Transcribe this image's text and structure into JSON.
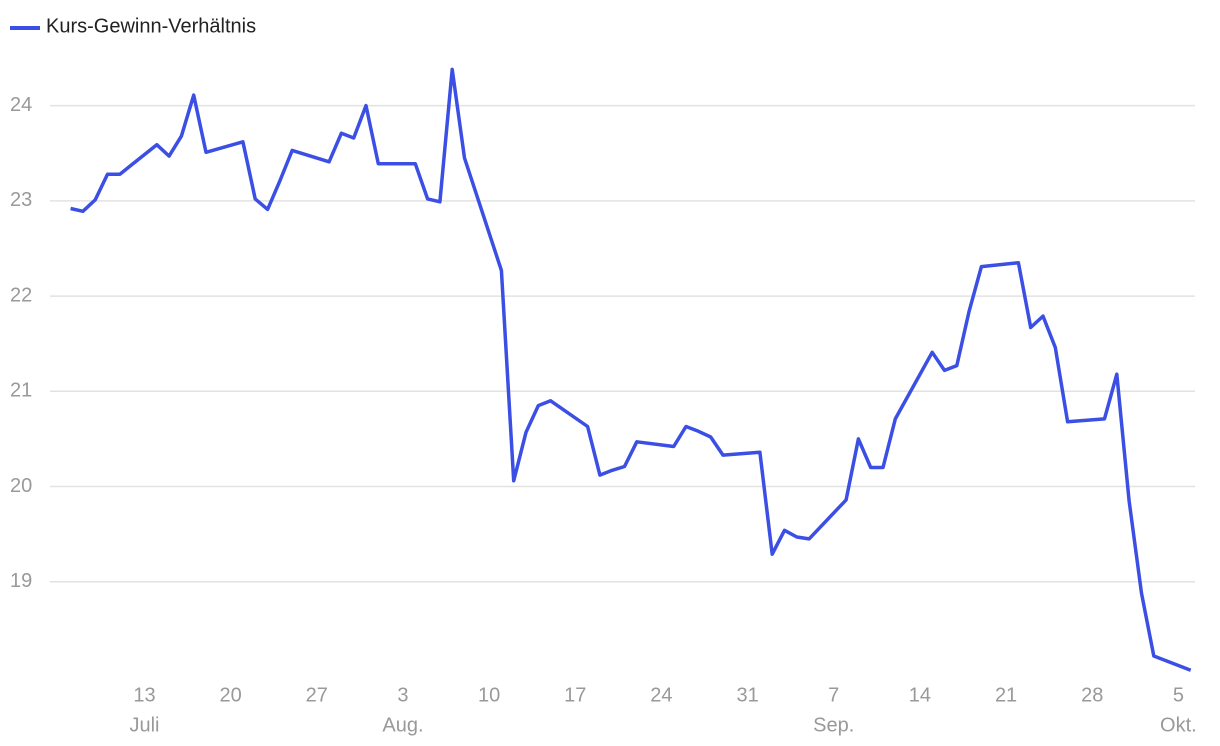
{
  "chart_data": {
    "type": "line",
    "x": [
      "07-07",
      "07-08",
      "07-09",
      "07-10",
      "07-11",
      "07-14",
      "07-15",
      "07-16",
      "07-17",
      "07-18",
      "07-21",
      "07-22",
      "07-23",
      "07-24",
      "07-25",
      "07-28",
      "07-29",
      "07-30",
      "07-31",
      "08-01",
      "08-04",
      "08-05",
      "08-06",
      "08-07",
      "08-08",
      "08-11",
      "08-12",
      "08-13",
      "08-14",
      "08-15",
      "08-18",
      "08-19",
      "08-20",
      "08-21",
      "08-22",
      "08-25",
      "08-26",
      "08-27",
      "08-28",
      "08-29",
      "09-01",
      "09-02",
      "09-03",
      "09-04",
      "09-05",
      "09-08",
      "09-09",
      "09-10",
      "09-11",
      "09-12",
      "09-15",
      "09-16",
      "09-17",
      "09-18",
      "09-19",
      "09-22",
      "09-23",
      "09-24",
      "09-25",
      "09-26",
      "09-29",
      "09-30",
      "10-01",
      "10-02",
      "10-03",
      "10-06"
    ],
    "series": [
      {
        "name": "Kurs-Gewinn-Verhältnis",
        "color": "#3b4fe4",
        "values": [
          22.92,
          22.89,
          23.01,
          23.28,
          23.28,
          23.59,
          23.47,
          23.68,
          24.11,
          23.51,
          23.62,
          23.02,
          22.91,
          23.21,
          23.53,
          23.41,
          23.71,
          23.66,
          24.0,
          23.39,
          23.39,
          23.02,
          22.99,
          24.38,
          23.45,
          22.27,
          20.06,
          20.57,
          20.85,
          20.9,
          20.63,
          20.12,
          20.17,
          20.21,
          20.47,
          20.42,
          20.63,
          20.58,
          20.52,
          20.33,
          20.36,
          19.29,
          19.54,
          19.47,
          19.45,
          19.86,
          20.5,
          20.2,
          20.2,
          20.71,
          21.41,
          21.22,
          21.27,
          21.84,
          22.31,
          22.35,
          21.67,
          21.79,
          21.46,
          20.68,
          20.71,
          21.18,
          19.85,
          18.88,
          18.22,
          18.07
        ]
      }
    ],
    "xlim": [
      "07-05",
      "10-07"
    ],
    "xticks": [
      {
        "value": "07-13",
        "label": "13",
        "month": "Juli"
      },
      {
        "value": "07-20",
        "label": "20"
      },
      {
        "value": "07-27",
        "label": "27"
      },
      {
        "value": "08-03",
        "label": "3",
        "month": "Aug."
      },
      {
        "value": "08-10",
        "label": "10"
      },
      {
        "value": "08-17",
        "label": "17"
      },
      {
        "value": "08-24",
        "label": "24"
      },
      {
        "value": "08-31",
        "label": "31"
      },
      {
        "value": "09-07",
        "label": "7",
        "month": "Sep."
      },
      {
        "value": "09-14",
        "label": "14"
      },
      {
        "value": "09-21",
        "label": "21"
      },
      {
        "value": "09-28",
        "label": "28"
      },
      {
        "value": "10-05",
        "label": "5",
        "month": "Okt."
      }
    ],
    "ylim": [
      18,
      24.5
    ],
    "yticks": [
      19,
      20,
      21,
      22,
      23,
      24
    ],
    "grid": true
  }
}
